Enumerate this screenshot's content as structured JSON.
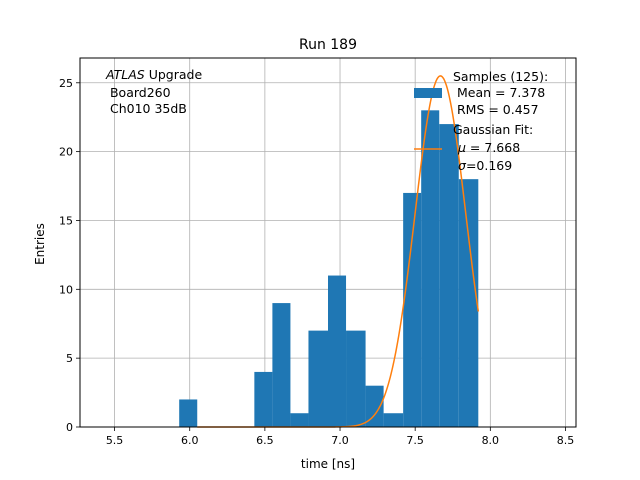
{
  "chart_data": {
    "type": "bar",
    "title": "Run 189",
    "xlabel": "time [ns]",
    "ylabel": "Entries",
    "xlim": [
      5.27,
      8.57
    ],
    "ylim": [
      0,
      26.8
    ],
    "xticks": [
      5.5,
      6.0,
      6.5,
      7.0,
      7.5,
      8.0,
      8.5
    ],
    "xtick_labels": [
      "5.5",
      "6.0",
      "6.5",
      "7.0",
      "7.5",
      "8.0",
      "8.5"
    ],
    "yticks": [
      0,
      5,
      10,
      15,
      20,
      25
    ],
    "ytick_labels": [
      "0",
      "5",
      "10",
      "15",
      "20",
      "25"
    ],
    "grid": true,
    "bar_color": "#1f77b4",
    "fit_color": "#ff7f0e",
    "annotation": {
      "italic_part": "ATLAS",
      "line1_rest": " Upgrade",
      "line2": " Board260",
      "line3": " Ch010 35dB"
    },
    "histogram": {
      "name": "Samples (125):",
      "bins": [
        {
          "x0": 5.93,
          "x1": 6.05,
          "count": 2
        },
        {
          "x0": 6.05,
          "x1": 6.17,
          "count": 0
        },
        {
          "x0": 6.17,
          "x1": 6.3,
          "count": 0
        },
        {
          "x0": 6.3,
          "x1": 6.43,
          "count": 0
        },
        {
          "x0": 6.43,
          "x1": 6.55,
          "count": 4
        },
        {
          "x0": 6.55,
          "x1": 6.67,
          "count": 9
        },
        {
          "x0": 6.67,
          "x1": 6.79,
          "count": 1
        },
        {
          "x0": 6.79,
          "x1": 6.92,
          "count": 7
        },
        {
          "x0": 6.92,
          "x1": 7.04,
          "count": 11
        },
        {
          "x0": 7.04,
          "x1": 7.17,
          "count": 7
        },
        {
          "x0": 7.17,
          "x1": 7.29,
          "count": 3
        },
        {
          "x0": 7.29,
          "x1": 7.42,
          "count": 1
        },
        {
          "x0": 7.42,
          "x1": 7.54,
          "count": 17
        },
        {
          "x0": 7.54,
          "x1": 7.66,
          "count": 23
        },
        {
          "x0": 7.66,
          "x1": 7.79,
          "count": 22
        },
        {
          "x0": 7.79,
          "x1": 7.92,
          "count": 18
        }
      ]
    },
    "fit": {
      "name": "Gaussian Fit:",
      "mu": 7.668,
      "sigma": 0.169,
      "amplitude": 25.5,
      "x_range": [
        6.05,
        7.92
      ]
    },
    "legend": {
      "placement": "top-right",
      "samples_title": "Samples (125):",
      "samples_mean": " Mean = 7.378",
      "samples_rms": " RMS = 0.457",
      "fit_title": "Gaussian Fit:",
      "fit_mu_symbol": "μ",
      "fit_mu_rest": " = 7.668",
      "fit_sigma_symbol": "σ",
      "fit_sigma_rest": "=0.169"
    }
  }
}
